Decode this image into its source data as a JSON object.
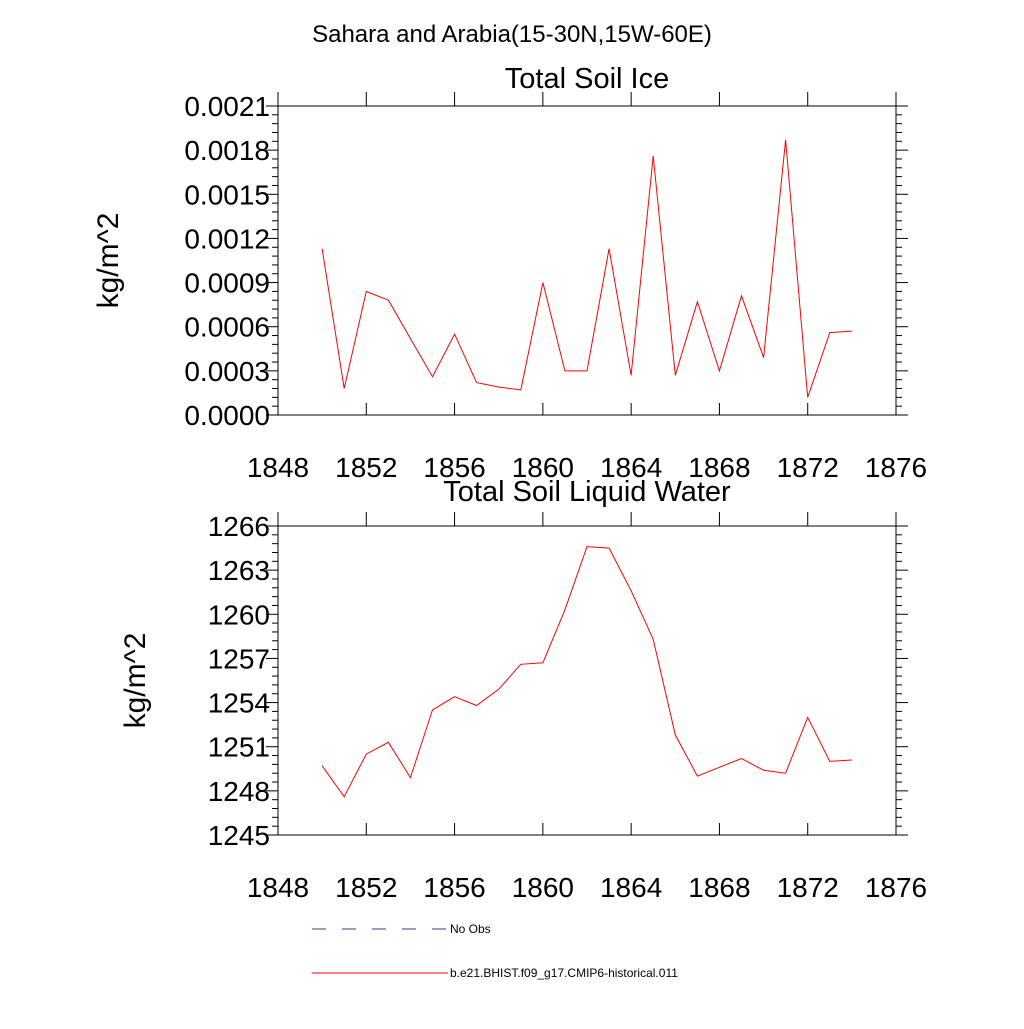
{
  "page_title": "Sahara and Arabia(15-30N,15W-60E)",
  "legend": [
    {
      "label": "No Obs",
      "color": "#3a3a8a",
      "style": "dashed"
    },
    {
      "label": "b.e21.BHIST.f09_g17.CMIP6-historical.011",
      "color": "#ff0000",
      "style": "solid"
    }
  ],
  "chart_data": [
    {
      "type": "line",
      "title": "Total Soil Ice",
      "xlabel": "",
      "ylabel": "kg/m^2",
      "xlim": [
        1848,
        1876
      ],
      "ylim": [
        0.0,
        0.0021
      ],
      "grid": false,
      "x_ticks": [
        "1848",
        "1852",
        "1856",
        "1860",
        "1864",
        "1868",
        "1872",
        "1876"
      ],
      "y_ticks": [
        "0.0000",
        "0.0003",
        "0.0006",
        "0.0009",
        "0.0012",
        "0.0015",
        "0.0018",
        "0.0021"
      ],
      "series": [
        {
          "name": "b.e21.BHIST.f09_g17.CMIP6-historical.011",
          "color": "#ff0000",
          "x": [
            1850,
            1851,
            1852,
            1853,
            1854,
            1855,
            1856,
            1857,
            1858,
            1859,
            1860,
            1861,
            1862,
            1863,
            1864,
            1865,
            1866,
            1867,
            1868,
            1869,
            1870,
            1871,
            1872,
            1873,
            1874
          ],
          "y": [
            0.00113,
            0.00018,
            0.00084,
            0.00078,
            0.00052,
            0.00026,
            0.00055,
            0.00022,
            0.00019,
            0.00017,
            0.0009,
            0.0003,
            0.0003,
            0.00113,
            0.00027,
            0.00176,
            0.00027,
            0.00077,
            0.0003,
            0.00081,
            0.00039,
            0.00187,
            0.00012,
            0.00056,
            0.00057
          ]
        }
      ]
    },
    {
      "type": "line",
      "title": "Total Soil Liquid Water",
      "xlabel": "",
      "ylabel": "kg/m^2",
      "xlim": [
        1848,
        1876
      ],
      "ylim": [
        1245,
        1266
      ],
      "grid": false,
      "x_ticks": [
        "1848",
        "1852",
        "1856",
        "1860",
        "1864",
        "1868",
        "1872",
        "1876"
      ],
      "y_ticks": [
        "1245",
        "1248",
        "1251",
        "1254",
        "1257",
        "1260",
        "1263",
        "1266"
      ],
      "series": [
        {
          "name": "b.e21.BHIST.f09_g17.CMIP6-historical.011",
          "color": "#ff0000",
          "x": [
            1850,
            1851,
            1852,
            1853,
            1854,
            1855,
            1856,
            1857,
            1858,
            1859,
            1860,
            1861,
            1862,
            1863,
            1864,
            1865,
            1866,
            1867,
            1868,
            1869,
            1870,
            1871,
            1872,
            1873,
            1874
          ],
          "y": [
            1249.7,
            1247.6,
            1250.5,
            1251.3,
            1248.9,
            1253.5,
            1254.4,
            1253.8,
            1254.9,
            1256.6,
            1256.7,
            1260.3,
            1264.6,
            1264.5,
            1261.6,
            1258.3,
            1251.8,
            1249.0,
            1249.6,
            1250.2,
            1249.4,
            1249.2,
            1253.0,
            1250.0,
            1250.1
          ]
        }
      ]
    }
  ]
}
